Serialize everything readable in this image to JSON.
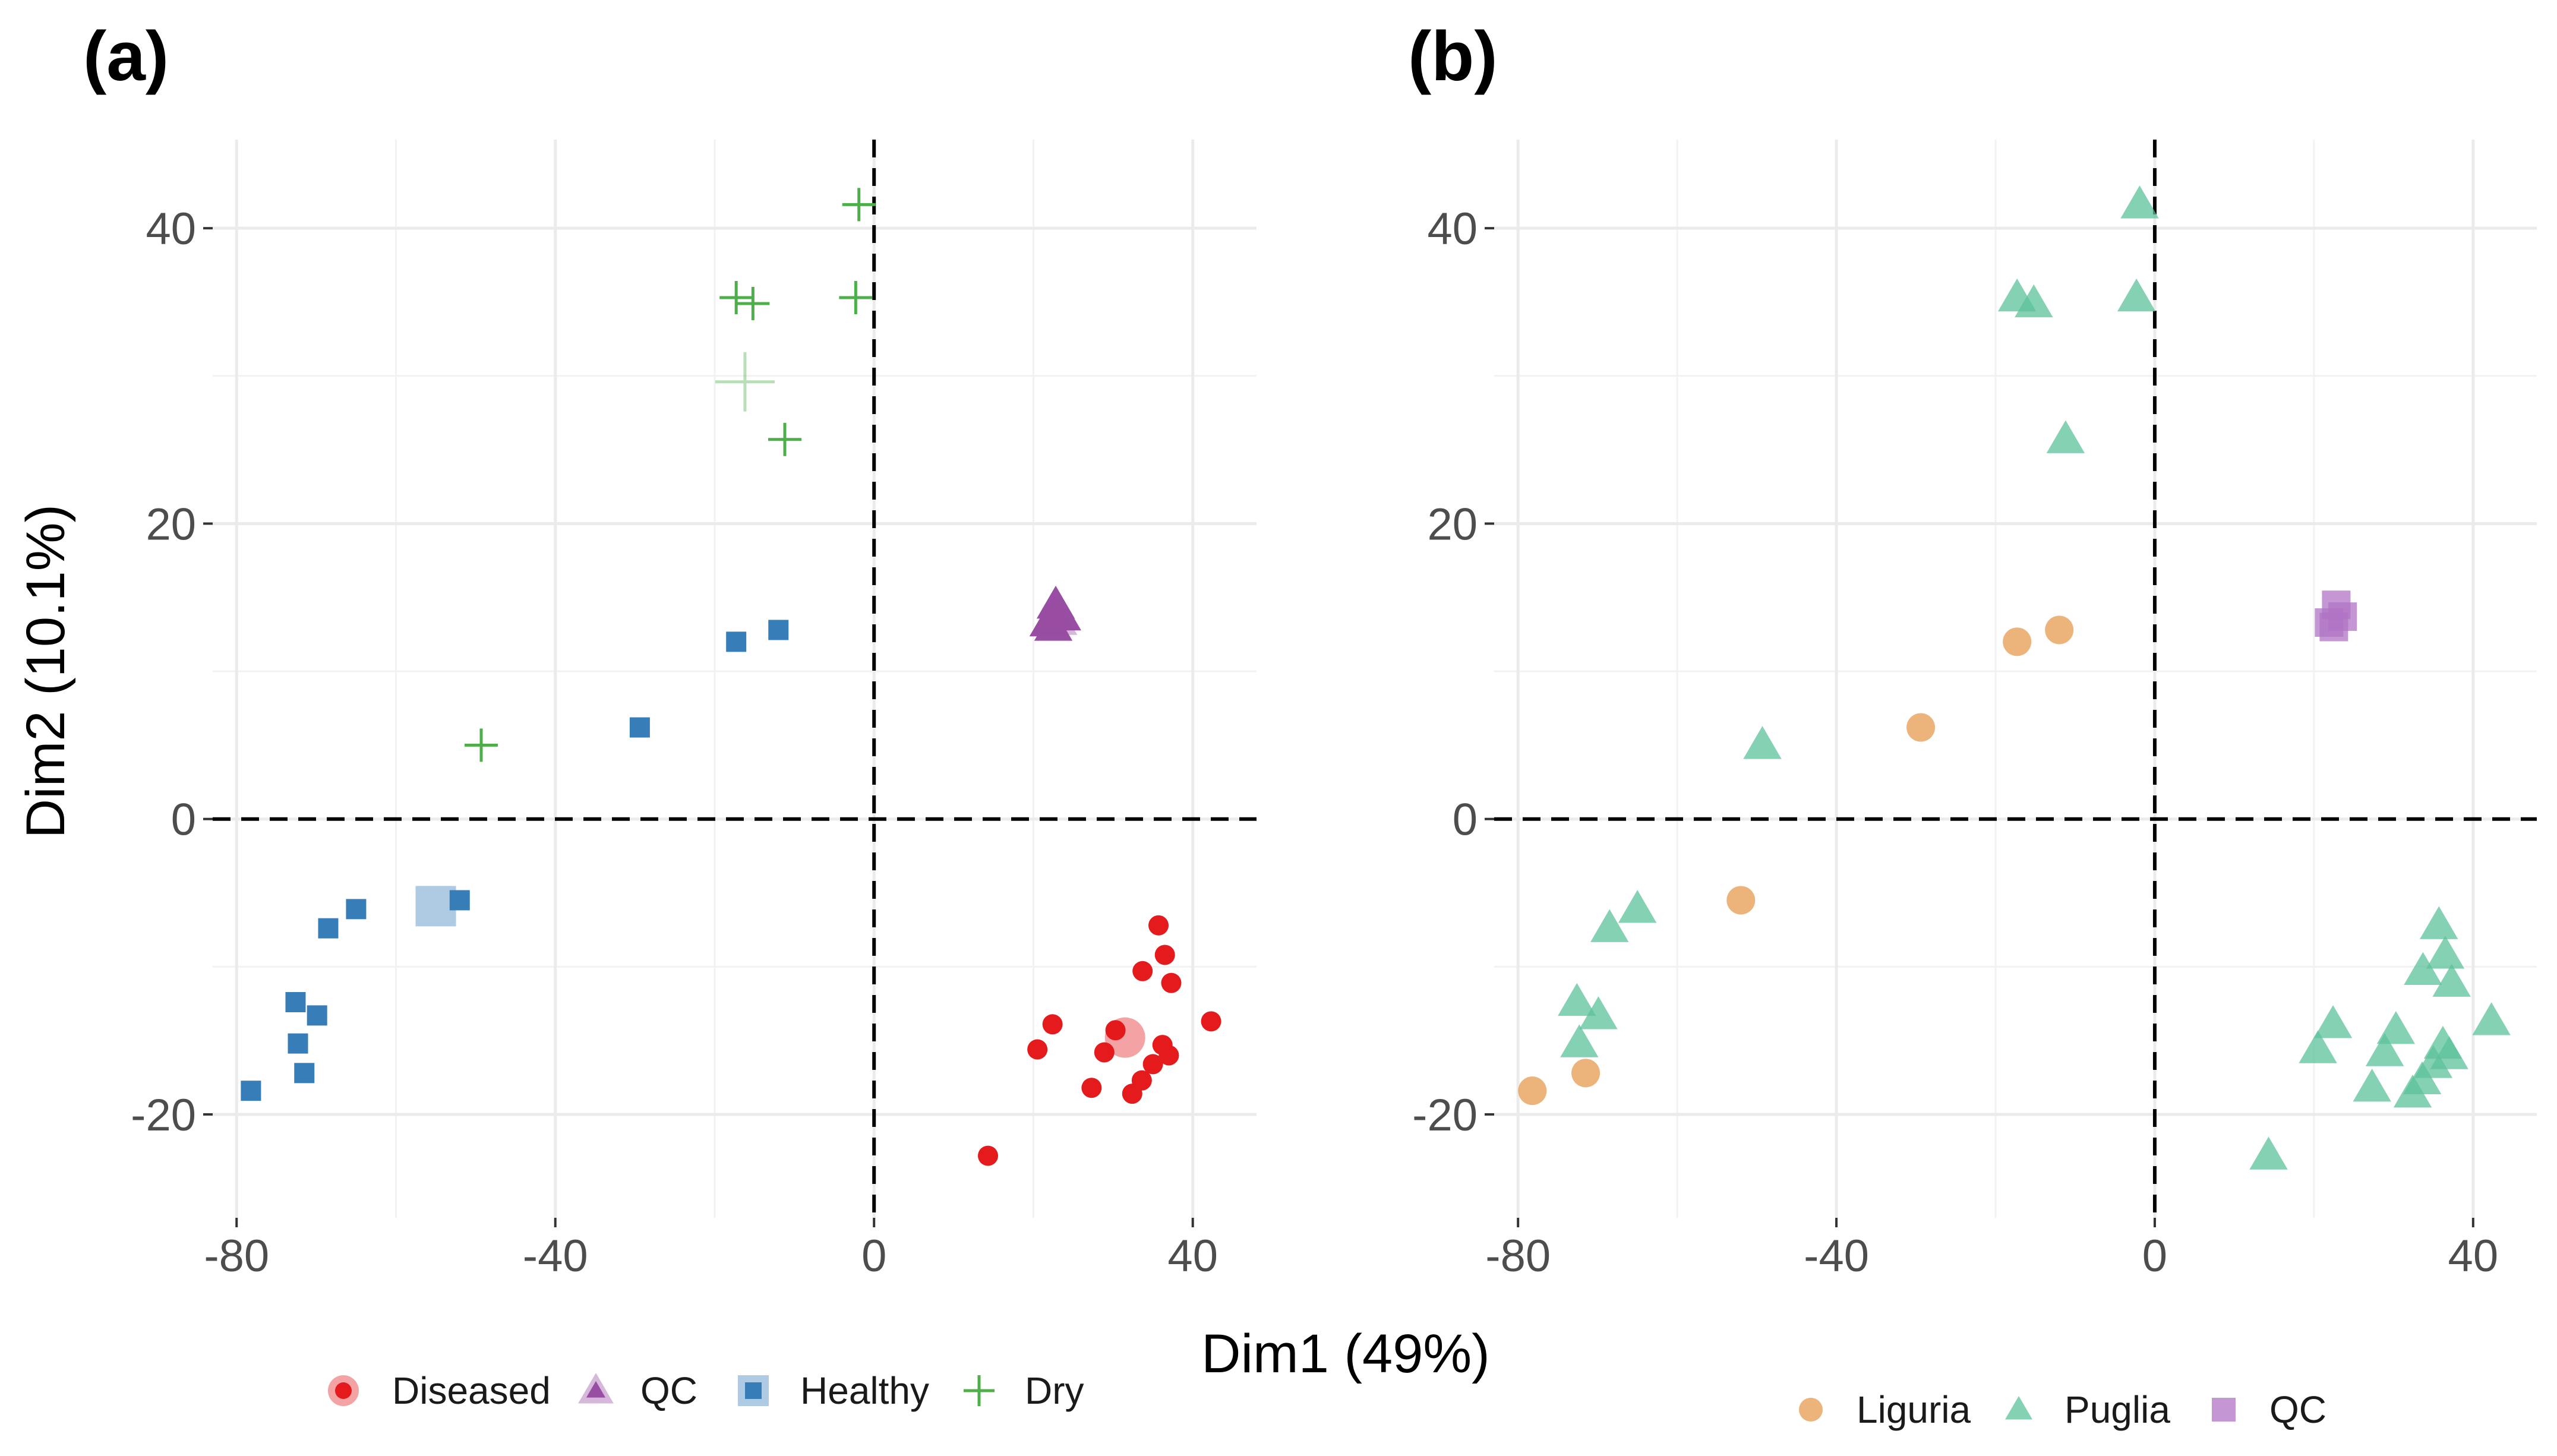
{
  "chart_data": [
    {
      "panel": "(a)",
      "type": "scatter",
      "xlabel": "Dim1 (49%)",
      "ylabel": "Dim2 (10.1%)",
      "xlim": [
        -83,
        48
      ],
      "ylim": [
        -27,
        46
      ],
      "xticks": [
        -80,
        -40,
        0,
        40
      ],
      "yticks": [
        -20,
        0,
        20,
        40
      ],
      "reference_lines": {
        "x": 0,
        "y": 0,
        "style": "dashed"
      },
      "legend_position": "bottom",
      "series": [
        {
          "name": "Diseased",
          "shape": "circle",
          "color": "#e41a1c",
          "points": [
            [
              35.7,
              -7.2
            ],
            [
              36.5,
              -9.2
            ],
            [
              37.3,
              -11.1
            ],
            [
              33.7,
              -10.3
            ],
            [
              42.3,
              -13.7
            ],
            [
              22.4,
              -13.9
            ],
            [
              30.3,
              -14.3
            ],
            [
              36.2,
              -15.3
            ],
            [
              20.5,
              -15.6
            ],
            [
              28.9,
              -15.8
            ],
            [
              37.0,
              -16.0
            ],
            [
              35.0,
              -16.6
            ],
            [
              33.6,
              -17.7
            ],
            [
              27.3,
              -18.2
            ],
            [
              32.4,
              -18.6
            ],
            [
              14.3,
              -22.8
            ]
          ],
          "centroid": [
            31.5,
            -14.8
          ]
        },
        {
          "name": "QC",
          "shape": "triangle",
          "color": "#984ea3",
          "points": [
            [
              22.8,
              14.5
            ],
            [
              23.6,
              13.7
            ],
            [
              21.9,
              13.3
            ],
            [
              22.5,
              13.0
            ]
          ],
          "centroid": [
            22.6,
            13.6
          ]
        },
        {
          "name": "Healthy",
          "shape": "square",
          "color": "#377eb8",
          "points": [
            [
              -12.0,
              12.8
            ],
            [
              -17.3,
              12.0
            ],
            [
              -29.4,
              6.2
            ],
            [
              -52.0,
              -5.5
            ],
            [
              -65.0,
              -6.1
            ],
            [
              -68.5,
              -7.4
            ],
            [
              -72.6,
              -12.4
            ],
            [
              -69.9,
              -13.3
            ],
            [
              -72.3,
              -15.2
            ],
            [
              -71.5,
              -17.2
            ],
            [
              -78.2,
              -18.4
            ]
          ],
          "centroid": [
            -55.0,
            -5.9
          ]
        },
        {
          "name": "Dry",
          "shape": "cross",
          "color": "#4daf4a",
          "points": [
            [
              -1.9,
              41.6
            ],
            [
              -17.3,
              35.3
            ],
            [
              -15.2,
              34.9
            ],
            [
              -2.3,
              35.3
            ],
            [
              -11.2,
              25.7
            ],
            [
              -49.3,
              5.0
            ]
          ],
          "centroid": [
            -16.2,
            29.6
          ]
        }
      ]
    },
    {
      "panel": "(b)",
      "type": "scatter",
      "xlabel": "Dim1 (49%)",
      "ylabel": "",
      "xlim": [
        -83,
        48
      ],
      "ylim": [
        -27,
        46
      ],
      "xticks": [
        -80,
        -40,
        0,
        40
      ],
      "yticks": [
        -20,
        0,
        20,
        40
      ],
      "reference_lines": {
        "x": 0,
        "y": 0,
        "style": "dashed"
      },
      "legend_position": "bottom",
      "series": [
        {
          "name": "Liguria",
          "shape": "circle",
          "color": "#e6994f",
          "points": [
            [
              -12.0,
              12.8
            ],
            [
              -17.3,
              12.0
            ],
            [
              -29.4,
              6.2
            ],
            [
              -52.0,
              -5.5
            ],
            [
              -71.5,
              -17.2
            ],
            [
              -78.2,
              -18.4
            ]
          ]
        },
        {
          "name": "Puglia",
          "shape": "triangle",
          "color": "#5cc19b",
          "points": [
            [
              -1.9,
              41.6
            ],
            [
              -17.3,
              35.3
            ],
            [
              -15.2,
              34.9
            ],
            [
              -2.3,
              35.3
            ],
            [
              -11.2,
              25.7
            ],
            [
              -49.3,
              5.0
            ],
            [
              -65.0,
              -6.1
            ],
            [
              -68.5,
              -7.4
            ],
            [
              -72.6,
              -12.4
            ],
            [
              -69.9,
              -13.3
            ],
            [
              -72.3,
              -15.2
            ],
            [
              35.7,
              -7.2
            ],
            [
              36.5,
              -9.2
            ],
            [
              37.3,
              -11.1
            ],
            [
              33.7,
              -10.3
            ],
            [
              42.3,
              -13.7
            ],
            [
              22.4,
              -13.9
            ],
            [
              30.3,
              -14.3
            ],
            [
              36.2,
              -15.3
            ],
            [
              20.5,
              -15.6
            ],
            [
              28.9,
              -15.8
            ],
            [
              37.0,
              -16.0
            ],
            [
              35.0,
              -16.6
            ],
            [
              33.6,
              -17.7
            ],
            [
              27.3,
              -18.2
            ],
            [
              32.4,
              -18.6
            ],
            [
              14.3,
              -22.8
            ]
          ]
        },
        {
          "name": "QC",
          "shape": "square",
          "color": "#b073c4",
          "points": [
            [
              22.8,
              14.5
            ],
            [
              23.6,
              13.7
            ],
            [
              21.9,
              13.3
            ],
            [
              22.5,
              13.0
            ]
          ]
        }
      ]
    }
  ]
}
